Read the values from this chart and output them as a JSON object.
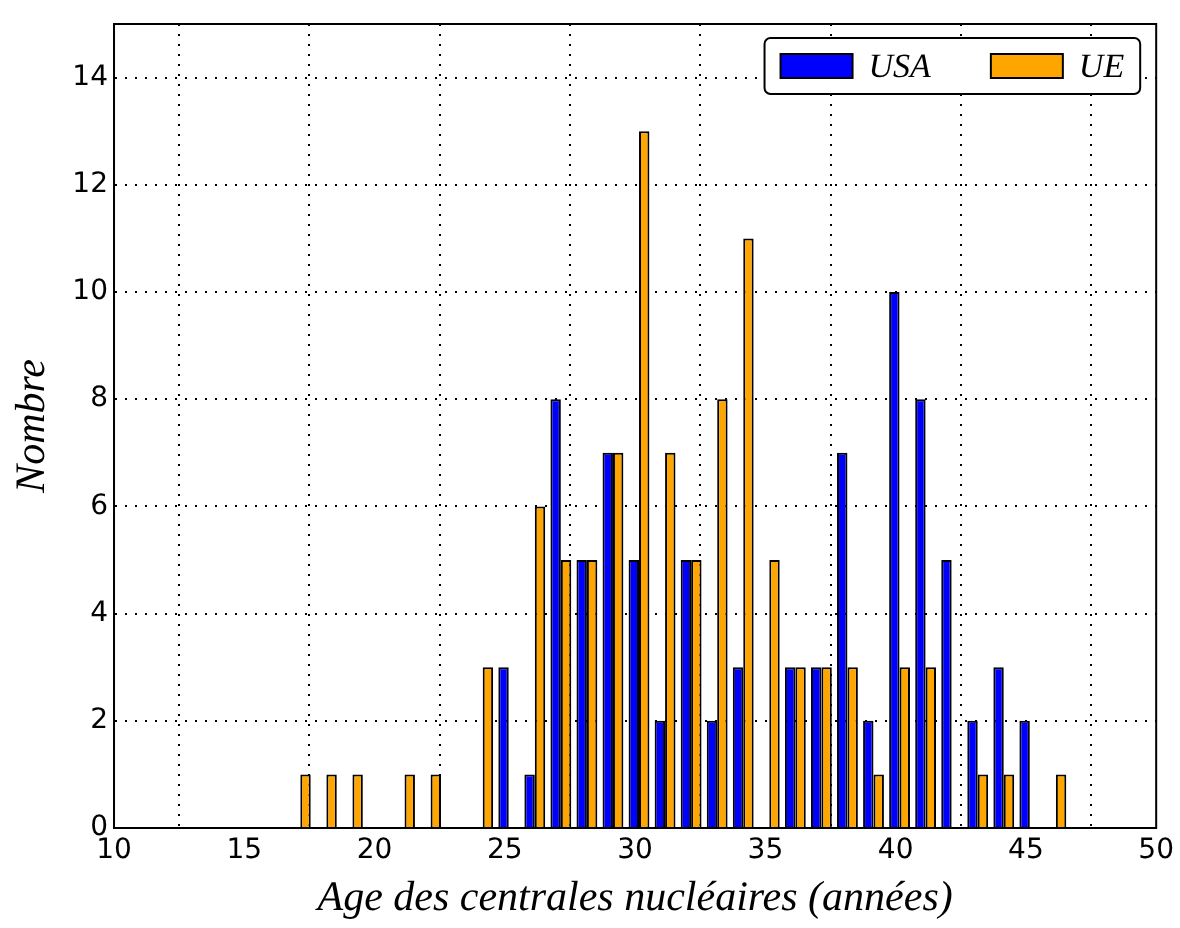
{
  "chart_data": {
    "type": "histogram",
    "xlabel": "Age des centrales nucléaires (années)",
    "ylabel": "Nombre",
    "bins": [
      16.65,
      17.65,
      18.65,
      19.65,
      20.65,
      21.65,
      22.65,
      23.65,
      24.65,
      25.65,
      26.65,
      27.65,
      28.65,
      29.65,
      30.65,
      31.65,
      32.65,
      33.65,
      34.65,
      35.65,
      36.65,
      37.65,
      38.65,
      39.65,
      40.65,
      41.65,
      42.65,
      43.65,
      44.65,
      45.65,
      46.65
    ],
    "series": [
      {
        "name": "USA",
        "color": "#0000ff",
        "values": [
          0,
          0,
          0,
          0,
          0,
          0,
          0,
          0,
          3,
          1,
          8,
          5,
          7,
          5,
          2,
          5,
          2,
          3,
          0,
          3,
          3,
          7,
          2,
          10,
          8,
          5,
          2,
          3,
          2,
          0
        ]
      },
      {
        "name": "UE",
        "color": "#ffa500",
        "values": [
          1,
          1,
          1,
          0,
          1,
          1,
          0,
          3,
          0,
          6,
          5,
          5,
          7,
          13,
          7,
          5,
          8,
          11,
          5,
          3,
          3,
          3,
          1,
          3,
          3,
          0,
          1,
          1,
          0,
          1
        ]
      }
    ],
    "xlim": [
      10,
      50
    ],
    "xticks": [
      10,
      15,
      20,
      25,
      30,
      35,
      40,
      45,
      50
    ],
    "ylim": [
      0,
      15
    ],
    "yticks": [
      0,
      2,
      4,
      6,
      8,
      10,
      12,
      14
    ],
    "grid": true,
    "legend": "top right"
  }
}
